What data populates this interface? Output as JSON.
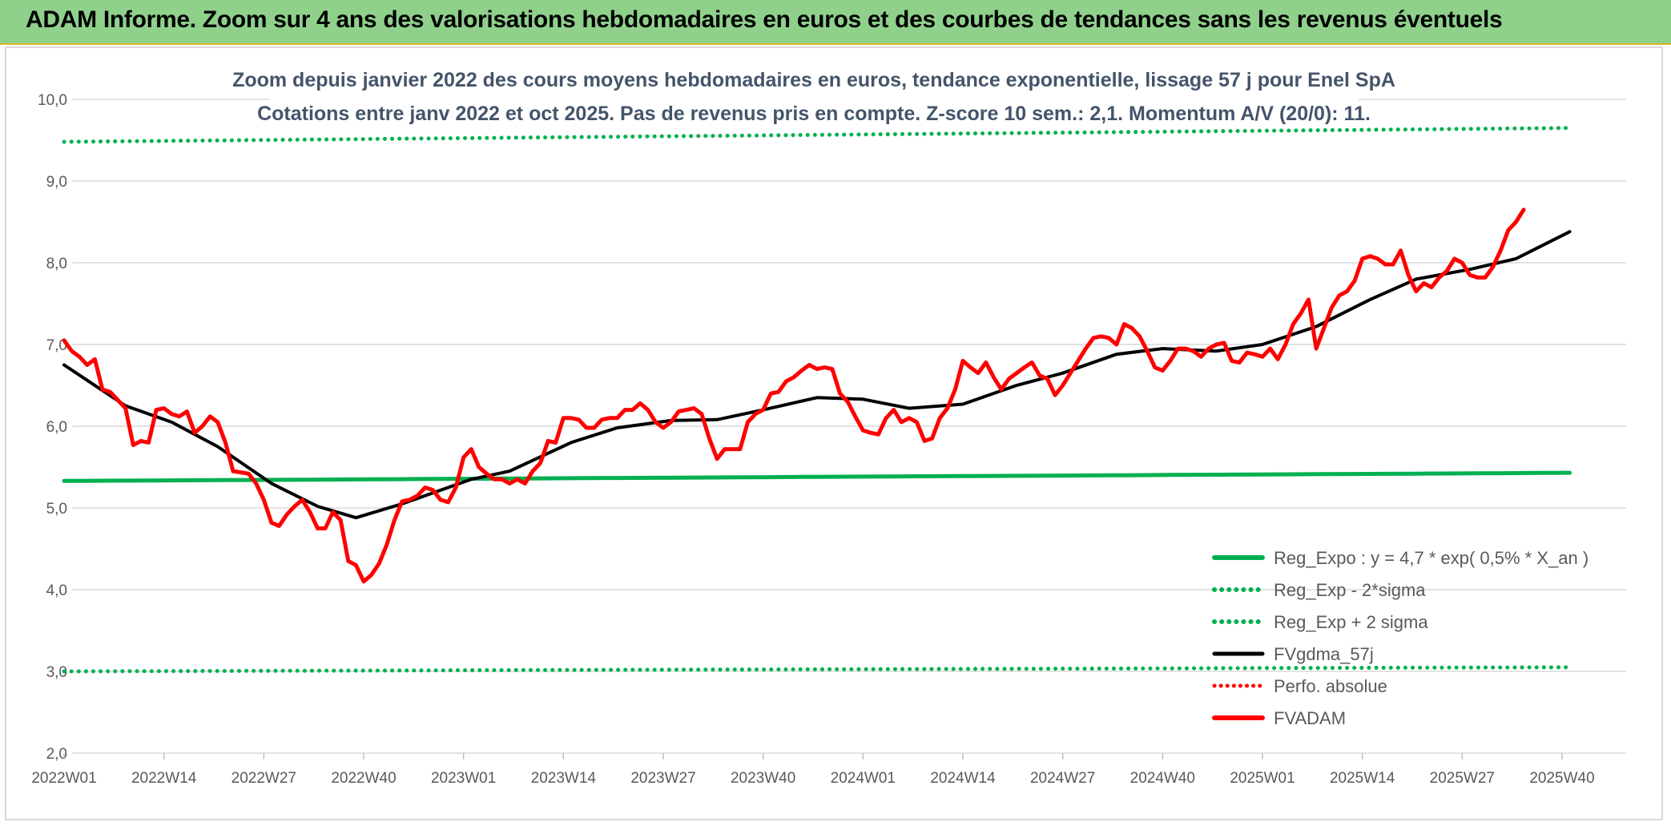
{
  "banner": {
    "title": "ADAM Informe. Zoom sur 4 ans des valorisations hebdomadaires en euros et des courbes de tendances sans les revenus éventuels"
  },
  "chart_data": {
    "type": "line",
    "title_lines": [
      "Zoom depuis janvier 2022 des cours moyens hebdomadaires en euros, tendance exponentielle, lissage 57 j pour Enel SpA",
      "Cotations entre janv 2022 et oct 2025. Pas de revenus pris en compte. Z-score 10 sem.: 2,1. Momentum A/V (20/0): 11."
    ],
    "xlabel": "",
    "ylabel": "",
    "ylim": [
      2.0,
      10.0
    ],
    "y_ticks": [
      "2,0",
      "3,0",
      "4,0",
      "5,0",
      "6,0",
      "7,0",
      "8,0",
      "9,0",
      "10,0"
    ],
    "x_ticks": [
      "2022W01",
      "2022W14",
      "2022W27",
      "2022W40",
      "2023W01",
      "2023W14",
      "2023W27",
      "2023W40",
      "2024W01",
      "2024W14",
      "2024W27",
      "2024W40",
      "2025W01",
      "2025W14",
      "2025W27",
      "2025W40"
    ],
    "grid": "horizontal",
    "legend_position": "bottom-right",
    "colors": {
      "green": "#00b050",
      "black": "#000000",
      "red": "#ff0000"
    },
    "series": [
      {
        "name": "Reg_Expo : y = 4,7 * exp( 0,5% *  X_an )",
        "style": "solid-green",
        "start": 5.33,
        "end": 5.43
      },
      {
        "name": "Reg_Exp - 2*sigma",
        "style": "dotted-green",
        "start": 3.0,
        "end": 3.05
      },
      {
        "name": "Reg_Exp + 2 sigma",
        "style": "dotted-green",
        "start": 9.48,
        "end": 9.65
      },
      {
        "name": "FVgdma_57j",
        "style": "solid-black",
        "keypoints": [
          [
            0,
            6.75
          ],
          [
            8,
            6.25
          ],
          [
            14,
            6.05
          ],
          [
            20,
            5.75
          ],
          [
            27,
            5.3
          ],
          [
            33,
            5.02
          ],
          [
            38,
            4.88
          ],
          [
            44,
            5.05
          ],
          [
            53,
            5.35
          ],
          [
            58,
            5.45
          ],
          [
            66,
            5.8
          ],
          [
            72,
            5.98
          ],
          [
            79,
            6.07
          ],
          [
            85,
            6.08
          ],
          [
            91,
            6.2
          ],
          [
            98,
            6.35
          ],
          [
            104,
            6.33
          ],
          [
            110,
            6.22
          ],
          [
            117,
            6.27
          ],
          [
            124,
            6.5
          ],
          [
            130,
            6.65
          ],
          [
            137,
            6.88
          ],
          [
            143,
            6.95
          ],
          [
            150,
            6.92
          ],
          [
            156,
            7.0
          ],
          [
            163,
            7.22
          ],
          [
            170,
            7.55
          ],
          [
            176,
            7.8
          ],
          [
            183,
            7.92
          ],
          [
            189,
            8.05
          ],
          [
            196,
            8.38
          ]
        ]
      },
      {
        "name": "Perfo. absolue",
        "style": "dotted-red",
        "points": []
      },
      {
        "name": "FVADAM",
        "style": "solid-red",
        "keypoints": [
          [
            0,
            7.05
          ],
          [
            1,
            6.92
          ],
          [
            2,
            6.85
          ],
          [
            3,
            6.75
          ],
          [
            4,
            6.82
          ],
          [
            5,
            6.45
          ],
          [
            6,
            6.42
          ],
          [
            8,
            6.22
          ],
          [
            9,
            5.77
          ],
          [
            10,
            5.82
          ],
          [
            11,
            5.8
          ],
          [
            12,
            6.2
          ],
          [
            13,
            6.22
          ],
          [
            14,
            6.15
          ],
          [
            15,
            6.12
          ],
          [
            16,
            6.18
          ],
          [
            17,
            5.92
          ],
          [
            18,
            6.0
          ],
          [
            19,
            6.12
          ],
          [
            20,
            6.05
          ],
          [
            21,
            5.8
          ],
          [
            22,
            5.45
          ],
          [
            24,
            5.42
          ],
          [
            25,
            5.3
          ],
          [
            26,
            5.1
          ],
          [
            27,
            4.82
          ],
          [
            28,
            4.78
          ],
          [
            29,
            4.92
          ],
          [
            30,
            5.02
          ],
          [
            31,
            5.1
          ],
          [
            32,
            4.95
          ],
          [
            33,
            4.75
          ],
          [
            34,
            4.75
          ],
          [
            35,
            4.95
          ],
          [
            36,
            4.85
          ],
          [
            37,
            4.35
          ],
          [
            38,
            4.3
          ],
          [
            39,
            4.1
          ],
          [
            40,
            4.18
          ],
          [
            41,
            4.32
          ],
          [
            42,
            4.55
          ],
          [
            43,
            4.85
          ],
          [
            44,
            5.08
          ],
          [
            45,
            5.1
          ],
          [
            46,
            5.15
          ],
          [
            47,
            5.25
          ],
          [
            48,
            5.22
          ],
          [
            49,
            5.1
          ],
          [
            50,
            5.07
          ],
          [
            51,
            5.25
          ],
          [
            52,
            5.62
          ],
          [
            53,
            5.72
          ],
          [
            54,
            5.5
          ],
          [
            55,
            5.42
          ],
          [
            56,
            5.35
          ],
          [
            57,
            5.35
          ],
          [
            58,
            5.3
          ],
          [
            59,
            5.35
          ],
          [
            60,
            5.3
          ],
          [
            61,
            5.45
          ],
          [
            62,
            5.55
          ],
          [
            63,
            5.82
          ],
          [
            64,
            5.8
          ],
          [
            65,
            6.1
          ],
          [
            66,
            6.1
          ],
          [
            67,
            6.08
          ],
          [
            68,
            5.98
          ],
          [
            69,
            5.98
          ],
          [
            70,
            6.08
          ],
          [
            71,
            6.1
          ],
          [
            72,
            6.1
          ],
          [
            73,
            6.2
          ],
          [
            74,
            6.2
          ],
          [
            75,
            6.28
          ],
          [
            76,
            6.2
          ],
          [
            77,
            6.05
          ],
          [
            78,
            5.98
          ],
          [
            79,
            6.05
          ],
          [
            80,
            6.18
          ],
          [
            81,
            6.2
          ],
          [
            82,
            6.22
          ],
          [
            83,
            6.15
          ],
          [
            84,
            5.85
          ],
          [
            85,
            5.6
          ],
          [
            86,
            5.72
          ],
          [
            87,
            5.72
          ],
          [
            88,
            5.72
          ],
          [
            89,
            6.05
          ],
          [
            90,
            6.15
          ],
          [
            91,
            6.2
          ],
          [
            92,
            6.4
          ],
          [
            93,
            6.42
          ],
          [
            94,
            6.55
          ],
          [
            95,
            6.6
          ],
          [
            96,
            6.68
          ],
          [
            97,
            6.75
          ],
          [
            98,
            6.7
          ],
          [
            99,
            6.72
          ],
          [
            100,
            6.7
          ],
          [
            101,
            6.4
          ],
          [
            102,
            6.3
          ],
          [
            103,
            6.12
          ],
          [
            104,
            5.95
          ],
          [
            105,
            5.92
          ],
          [
            106,
            5.9
          ],
          [
            107,
            6.1
          ],
          [
            108,
            6.2
          ],
          [
            109,
            6.05
          ],
          [
            110,
            6.1
          ],
          [
            111,
            6.05
          ],
          [
            112,
            5.82
          ],
          [
            113,
            5.85
          ],
          [
            114,
            6.1
          ],
          [
            115,
            6.22
          ],
          [
            116,
            6.45
          ],
          [
            117,
            6.8
          ],
          [
            118,
            6.72
          ],
          [
            119,
            6.65
          ],
          [
            120,
            6.78
          ],
          [
            121,
            6.6
          ],
          [
            122,
            6.45
          ],
          [
            123,
            6.58
          ],
          [
            124,
            6.65
          ],
          [
            125,
            6.72
          ],
          [
            126,
            6.78
          ],
          [
            127,
            6.62
          ],
          [
            128,
            6.58
          ],
          [
            129,
            6.38
          ],
          [
            130,
            6.5
          ],
          [
            131,
            6.65
          ],
          [
            132,
            6.8
          ],
          [
            133,
            6.95
          ],
          [
            134,
            7.08
          ],
          [
            135,
            7.1
          ],
          [
            136,
            7.08
          ],
          [
            137,
            7.0
          ],
          [
            138,
            7.25
          ],
          [
            139,
            7.2
          ],
          [
            140,
            7.1
          ],
          [
            141,
            6.92
          ],
          [
            142,
            6.72
          ],
          [
            143,
            6.68
          ],
          [
            144,
            6.8
          ],
          [
            145,
            6.95
          ],
          [
            146,
            6.95
          ],
          [
            147,
            6.92
          ],
          [
            148,
            6.85
          ],
          [
            149,
            6.95
          ],
          [
            150,
            7.0
          ],
          [
            151,
            7.02
          ],
          [
            152,
            6.8
          ],
          [
            153,
            6.78
          ],
          [
            154,
            6.9
          ],
          [
            155,
            6.88
          ],
          [
            156,
            6.85
          ],
          [
            157,
            6.95
          ],
          [
            158,
            6.82
          ],
          [
            159,
            7.0
          ],
          [
            160,
            7.25
          ],
          [
            161,
            7.38
          ],
          [
            162,
            7.55
          ],
          [
            163,
            6.95
          ],
          [
            164,
            7.2
          ],
          [
            165,
            7.45
          ],
          [
            166,
            7.6
          ],
          [
            167,
            7.65
          ],
          [
            168,
            7.78
          ],
          [
            169,
            8.05
          ],
          [
            170,
            8.08
          ],
          [
            171,
            8.05
          ],
          [
            172,
            7.98
          ],
          [
            173,
            7.98
          ],
          [
            174,
            8.15
          ],
          [
            175,
            7.85
          ],
          [
            176,
            7.65
          ],
          [
            177,
            7.75
          ],
          [
            178,
            7.7
          ],
          [
            179,
            7.82
          ],
          [
            180,
            7.9
          ],
          [
            181,
            8.05
          ],
          [
            182,
            8.0
          ],
          [
            183,
            7.85
          ],
          [
            184,
            7.82
          ],
          [
            185,
            7.82
          ],
          [
            186,
            7.95
          ],
          [
            187,
            8.15
          ],
          [
            188,
            8.4
          ],
          [
            189,
            8.5
          ],
          [
            190,
            8.65
          ]
        ]
      }
    ]
  }
}
